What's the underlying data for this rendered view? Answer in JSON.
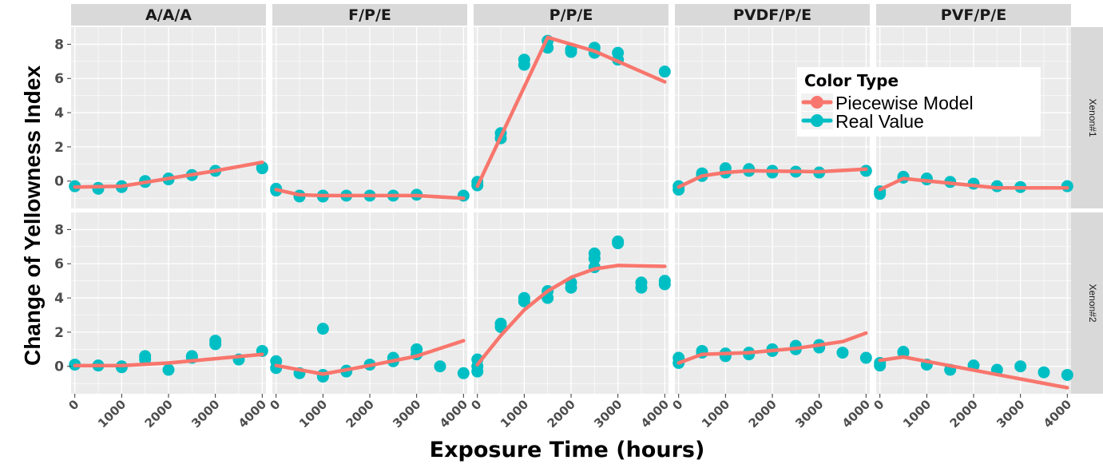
{
  "chart_data": {
    "type": "scatter",
    "xlabel": "Exposure Time (hours)",
    "ylabel": "Change of Yellowness Index",
    "xlim": [
      -80,
      4080
    ],
    "ylim": [
      -1.6,
      9.0
    ],
    "x_ticks": [
      0,
      1000,
      2000,
      3000,
      4000
    ],
    "x_tick_labels": [
      "0",
      "1000",
      "2000",
      "3000",
      "4000"
    ],
    "y_ticks": [
      0,
      2,
      4,
      6,
      8
    ],
    "y_tick_labels": [
      "0",
      "2",
      "4",
      "6",
      "8"
    ],
    "grid": true,
    "legend": {
      "title": "Color Type",
      "position": "inside top-right",
      "entries": [
        {
          "label": "Piecewise Model",
          "color": "#F8766D",
          "kind": "line"
        },
        {
          "label": "Real Value",
          "color": "#00BFC4",
          "kind": "point"
        }
      ]
    },
    "colors": {
      "model": "#F8766D",
      "real": "#00BFC4",
      "panel": "#EBEBEB",
      "strip": "#D9D9D9",
      "grid": "#FFFFFF"
    },
    "columns": [
      "A/A/A",
      "F/P/E",
      "P/P/E",
      "PVDF/P/E",
      "PVF/P/E"
    ],
    "rows": [
      "Xenon#1",
      "Xenon#2"
    ],
    "panels": [
      {
        "row": "Xenon#1",
        "col": "A/A/A",
        "real": [
          [
            0,
            -0.3
          ],
          [
            500,
            -0.4
          ],
          [
            500,
            -0.45
          ],
          [
            1000,
            -0.3
          ],
          [
            1000,
            -0.35
          ],
          [
            1500,
            -0.05
          ],
          [
            1500,
            0.0
          ],
          [
            2000,
            0.1
          ],
          [
            2000,
            0.15
          ],
          [
            2500,
            0.35
          ],
          [
            3000,
            0.6
          ],
          [
            4000,
            0.75
          ],
          [
            4000,
            0.8
          ]
        ],
        "model": [
          [
            0,
            -0.35
          ],
          [
            1000,
            -0.3
          ],
          [
            2000,
            0.15
          ],
          [
            3000,
            0.6
          ],
          [
            4000,
            1.1
          ]
        ]
      },
      {
        "row": "Xenon#1",
        "col": "F/P/E",
        "real": [
          [
            0,
            -0.45
          ],
          [
            0,
            -0.55
          ],
          [
            500,
            -0.85
          ],
          [
            500,
            -0.9
          ],
          [
            1000,
            -0.85
          ],
          [
            1000,
            -0.9
          ],
          [
            1500,
            -0.85
          ],
          [
            2000,
            -0.85
          ],
          [
            2500,
            -0.85
          ],
          [
            3000,
            -0.8
          ],
          [
            4000,
            -0.85
          ]
        ],
        "model": [
          [
            0,
            -0.5
          ],
          [
            500,
            -0.8
          ],
          [
            1000,
            -0.85
          ],
          [
            3000,
            -0.85
          ],
          [
            4000,
            -1.0
          ]
        ]
      },
      {
        "row": "Xenon#1",
        "col": "P/P/E",
        "real": [
          [
            0,
            -0.05
          ],
          [
            0,
            -0.25
          ],
          [
            500,
            2.5
          ],
          [
            500,
            2.8
          ],
          [
            1000,
            6.8
          ],
          [
            1000,
            7.1
          ],
          [
            1500,
            7.8
          ],
          [
            1500,
            8.2
          ],
          [
            2000,
            7.55
          ],
          [
            2000,
            7.7
          ],
          [
            2500,
            7.5
          ],
          [
            2500,
            7.8
          ],
          [
            3000,
            7.5
          ],
          [
            3000,
            7.1
          ],
          [
            4000,
            6.4
          ]
        ],
        "model": [
          [
            0,
            -0.3
          ],
          [
            1500,
            8.4
          ],
          [
            2500,
            7.6
          ],
          [
            4000,
            5.8
          ]
        ]
      },
      {
        "row": "Xenon#1",
        "col": "PVDF/P/E",
        "real": [
          [
            0,
            -0.3
          ],
          [
            0,
            -0.5
          ],
          [
            500,
            0.3
          ],
          [
            500,
            0.45
          ],
          [
            1000,
            0.5
          ],
          [
            1000,
            0.75
          ],
          [
            1500,
            0.6
          ],
          [
            1500,
            0.7
          ],
          [
            2000,
            0.5
          ],
          [
            2000,
            0.6
          ],
          [
            2500,
            0.55
          ],
          [
            3000,
            0.5
          ],
          [
            4000,
            0.6
          ]
        ],
        "model": [
          [
            0,
            -0.35
          ],
          [
            500,
            0.3
          ],
          [
            1000,
            0.5
          ],
          [
            1500,
            0.6
          ],
          [
            3000,
            0.55
          ],
          [
            4000,
            0.7
          ]
        ]
      },
      {
        "row": "Xenon#1",
        "col": "PVF/P/E",
        "real": [
          [
            0,
            -0.6
          ],
          [
            0,
            -0.75
          ],
          [
            500,
            0.2
          ],
          [
            500,
            0.25
          ],
          [
            1000,
            0.1
          ],
          [
            1000,
            0.15
          ],
          [
            1500,
            -0.05
          ],
          [
            2000,
            -0.15
          ],
          [
            2500,
            -0.3
          ],
          [
            3000,
            -0.35
          ],
          [
            4000,
            -0.3
          ]
        ],
        "model": [
          [
            0,
            -0.5
          ],
          [
            500,
            0.15
          ],
          [
            2500,
            -0.4
          ],
          [
            4000,
            -0.4
          ]
        ]
      },
      {
        "row": "Xenon#2",
        "col": "A/A/A",
        "real": [
          [
            0,
            0.1
          ],
          [
            500,
            0.05
          ],
          [
            1000,
            0.0
          ],
          [
            1000,
            -0.05
          ],
          [
            1500,
            0.4
          ],
          [
            1500,
            0.6
          ],
          [
            2000,
            -0.2
          ],
          [
            2500,
            0.5
          ],
          [
            2500,
            0.6
          ],
          [
            3000,
            1.3
          ],
          [
            3000,
            1.5
          ],
          [
            3500,
            0.4
          ],
          [
            4000,
            0.9
          ]
        ],
        "model": [
          [
            0,
            0.05
          ],
          [
            1000,
            0.05
          ],
          [
            2000,
            0.2
          ],
          [
            3000,
            0.45
          ],
          [
            4000,
            0.7
          ]
        ]
      },
      {
        "row": "Xenon#2",
        "col": "F/P/E",
        "real": [
          [
            0,
            0.3
          ],
          [
            0,
            -0.1
          ],
          [
            500,
            -0.4
          ],
          [
            1000,
            -0.5
          ],
          [
            1000,
            -0.6
          ],
          [
            1000,
            2.2
          ],
          [
            1500,
            -0.3
          ],
          [
            1500,
            -0.25
          ],
          [
            2000,
            0.1
          ],
          [
            2500,
            0.3
          ],
          [
            2500,
            0.5
          ],
          [
            3000,
            0.7
          ],
          [
            3000,
            1.0
          ],
          [
            3500,
            0.0
          ],
          [
            4000,
            -0.4
          ]
        ],
        "model": [
          [
            0,
            0.05
          ],
          [
            1000,
            -0.45
          ],
          [
            2000,
            0.05
          ],
          [
            3000,
            0.6
          ],
          [
            4000,
            1.5
          ]
        ]
      },
      {
        "row": "Xenon#2",
        "col": "P/P/E",
        "real": [
          [
            0,
            0.4
          ],
          [
            0,
            0.0
          ],
          [
            0,
            -0.3
          ],
          [
            500,
            2.3
          ],
          [
            500,
            2.5
          ],
          [
            1000,
            3.8
          ],
          [
            1000,
            4.0
          ],
          [
            1500,
            4.0
          ],
          [
            1500,
            4.4
          ],
          [
            2000,
            4.6
          ],
          [
            2000,
            4.9
          ],
          [
            2500,
            5.8
          ],
          [
            2500,
            6.3
          ],
          [
            2500,
            6.6
          ],
          [
            3000,
            7.2
          ],
          [
            3000,
            7.3
          ],
          [
            3500,
            4.6
          ],
          [
            3500,
            4.9
          ],
          [
            4000,
            4.8
          ],
          [
            4000,
            5.0
          ]
        ],
        "model": [
          [
            0,
            0.1
          ],
          [
            500,
            1.8
          ],
          [
            1000,
            3.3
          ],
          [
            1500,
            4.4
          ],
          [
            2000,
            5.2
          ],
          [
            2500,
            5.7
          ],
          [
            3000,
            5.9
          ],
          [
            4000,
            5.85
          ]
        ]
      },
      {
        "row": "Xenon#2",
        "col": "PVDF/P/E",
        "real": [
          [
            0,
            0.5
          ],
          [
            0,
            0.2
          ],
          [
            500,
            0.8
          ],
          [
            500,
            0.9
          ],
          [
            1000,
            0.6
          ],
          [
            1000,
            0.75
          ],
          [
            1500,
            0.8
          ],
          [
            1500,
            0.7
          ],
          [
            2000,
            0.9
          ],
          [
            2000,
            1.0
          ],
          [
            2500,
            1.0
          ],
          [
            2500,
            1.2
          ],
          [
            3000,
            1.1
          ],
          [
            3000,
            1.25
          ],
          [
            3500,
            0.8
          ],
          [
            4000,
            0.5
          ]
        ],
        "model": [
          [
            0,
            0.2
          ],
          [
            500,
            0.7
          ],
          [
            1500,
            0.8
          ],
          [
            2500,
            1.05
          ],
          [
            3500,
            1.45
          ],
          [
            4000,
            1.95
          ]
        ]
      },
      {
        "row": "Xenon#2",
        "col": "PVF/P/E",
        "real": [
          [
            0,
            0.2
          ],
          [
            0,
            0.05
          ],
          [
            500,
            0.8
          ],
          [
            500,
            0.85
          ],
          [
            1000,
            0.1
          ],
          [
            1500,
            -0.2
          ],
          [
            2000,
            0.05
          ],
          [
            2500,
            -0.2
          ],
          [
            3000,
            0.0
          ],
          [
            3500,
            -0.35
          ],
          [
            4000,
            -0.5
          ]
        ],
        "model": [
          [
            0,
            0.35
          ],
          [
            500,
            0.55
          ],
          [
            4000,
            -1.25
          ]
        ]
      }
    ]
  }
}
